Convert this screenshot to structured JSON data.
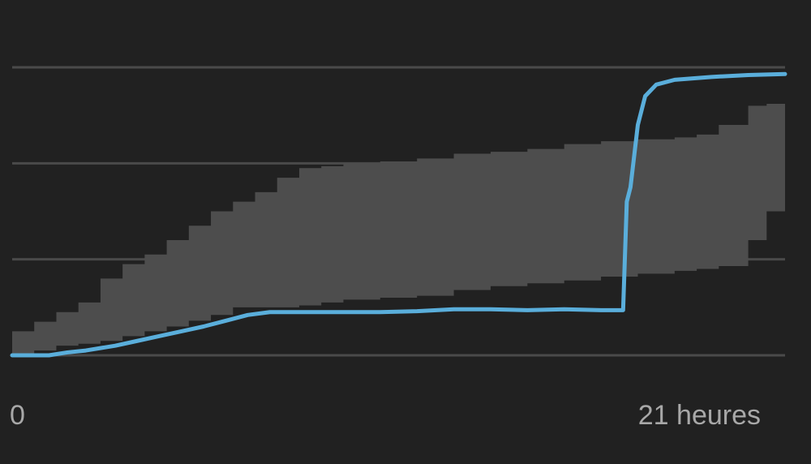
{
  "chart_data": {
    "type": "area",
    "title": "",
    "xlabel": "",
    "ylabel": "",
    "x_tick_labels": {
      "start": "0",
      "end": "21 heures"
    },
    "xlim": [
      0,
      21
    ],
    "ylim": [
      0,
      3
    ],
    "grid": true,
    "grid_lines_y": [
      0,
      1,
      2,
      3
    ],
    "band": {
      "x": [
        0,
        0.6,
        1.2,
        1.8,
        2.4,
        3.0,
        3.6,
        4.2,
        4.8,
        5.4,
        6.0,
        6.6,
        7.2,
        7.8,
        8.4,
        9.0,
        10.0,
        11.0,
        12.0,
        13.0,
        14.0,
        15.0,
        16.0,
        17.0,
        18.0,
        18.6,
        19.2,
        20.0,
        20.5,
        21.0
      ],
      "upper": [
        0.25,
        0.35,
        0.45,
        0.55,
        0.8,
        0.95,
        1.05,
        1.2,
        1.35,
        1.5,
        1.6,
        1.7,
        1.85,
        1.95,
        1.97,
        2.0,
        2.02,
        2.05,
        2.1,
        2.12,
        2.15,
        2.2,
        2.23,
        2.25,
        2.27,
        2.3,
        2.4,
        2.6,
        2.62,
        2.63
      ],
      "lower": [
        0.0,
        0.0,
        0.05,
        0.1,
        0.12,
        0.15,
        0.2,
        0.25,
        0.3,
        0.36,
        0.42,
        0.5,
        0.5,
        0.5,
        0.52,
        0.55,
        0.58,
        0.6,
        0.62,
        0.68,
        0.72,
        0.75,
        0.78,
        0.82,
        0.85,
        0.88,
        0.9,
        0.93,
        1.2,
        1.5
      ]
    },
    "series": [
      {
        "color": "#5aaedb",
        "x": [
          0,
          1.0,
          1.5,
          2.0,
          2.8,
          3.4,
          4.0,
          4.6,
          5.2,
          5.8,
          6.4,
          7.0,
          8.0,
          9.0,
          10.0,
          11.0,
          12.0,
          13.0,
          14.0,
          15.0,
          16.0,
          16.6,
          16.7,
          16.8,
          17.0,
          17.2,
          17.5,
          18.0,
          19.0,
          20.0,
          21.0
        ],
        "y": [
          0.0,
          0.0,
          0.03,
          0.05,
          0.1,
          0.15,
          0.2,
          0.25,
          0.3,
          0.36,
          0.42,
          0.45,
          0.45,
          0.45,
          0.45,
          0.46,
          0.48,
          0.48,
          0.47,
          0.48,
          0.47,
          0.47,
          1.6,
          1.75,
          2.4,
          2.7,
          2.82,
          2.87,
          2.9,
          2.92,
          2.93
        ]
      }
    ],
    "colors": {
      "background": "#212121",
      "grid": "#4a4a4a",
      "band": "#4d4d4d",
      "line": "#5aaedb",
      "tick_text": "#a8a8a8"
    }
  }
}
